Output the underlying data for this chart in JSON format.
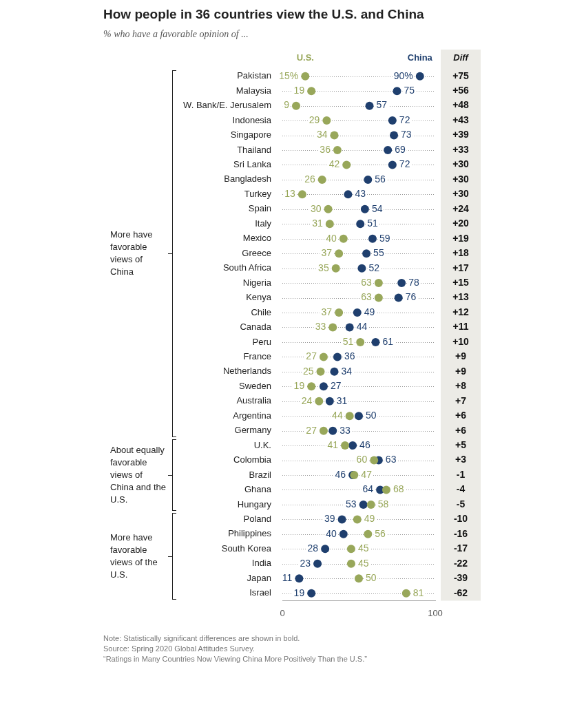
{
  "chart_data": {
    "type": "scatter",
    "orientation": "horizontal",
    "title": "How people in 36 countries view the U.S. and China",
    "subtitle": "% who have a favorable opinion of ...",
    "categories": [
      "Pakistan",
      "Malaysia",
      "W. Bank/E. Jerusalem",
      "Indonesia",
      "Singapore",
      "Thailand",
      "Sri Lanka",
      "Bangladesh",
      "Turkey",
      "Spain",
      "Italy",
      "Mexico",
      "Greece",
      "South Africa",
      "Nigeria",
      "Kenya",
      "Chile",
      "Canada",
      "Peru",
      "France",
      "Netherlands",
      "Sweden",
      "Australia",
      "Argentina",
      "Germany",
      "U.K.",
      "Colombia",
      "Brazil",
      "Ghana",
      "Hungary",
      "Poland",
      "Philippines",
      "South Korea",
      "India",
      "Japan",
      "Israel"
    ],
    "series": [
      {
        "name": "U.S.",
        "color": "#98a75a",
        "values": [
          15,
          19,
          9,
          29,
          34,
          36,
          42,
          26,
          13,
          30,
          31,
          40,
          37,
          35,
          63,
          63,
          37,
          33,
          51,
          27,
          25,
          19,
          24,
          44,
          27,
          41,
          60,
          47,
          68,
          58,
          49,
          56,
          45,
          45,
          50,
          81
        ],
        "value_labels": [
          "15%",
          "19",
          "9",
          "29",
          "34",
          "36",
          "42",
          "26",
          "13",
          "30",
          "31",
          "40",
          "37",
          "35",
          "63",
          "63",
          "37",
          "33",
          "51",
          "27",
          "25",
          "19",
          "24",
          "44",
          "27",
          "41",
          "60",
          "47",
          "68",
          "58",
          "49",
          "56",
          "45",
          "45",
          "50",
          "81"
        ]
      },
      {
        "name": "China",
        "color": "#1f3f6e",
        "values": [
          90,
          75,
          57,
          72,
          73,
          69,
          72,
          56,
          43,
          54,
          51,
          59,
          55,
          52,
          78,
          76,
          49,
          44,
          61,
          36,
          34,
          27,
          31,
          50,
          33,
          46,
          63,
          46,
          64,
          53,
          39,
          40,
          28,
          23,
          11,
          19
        ],
        "value_labels": [
          "90%",
          "75",
          "57",
          "72",
          "73",
          "69",
          "72",
          "56",
          "43",
          "54",
          "51",
          "59",
          "55",
          "52",
          "78",
          "76",
          "49",
          "44",
          "61",
          "36",
          "34",
          "27",
          "31",
          "50",
          "33",
          "46",
          "63",
          "46",
          "64",
          "53",
          "39",
          "40",
          "28",
          "23",
          "11",
          "19"
        ]
      }
    ],
    "xlim": [
      0,
      100
    ],
    "xticks": [
      0,
      100
    ],
    "grid": "y",
    "legend": "top",
    "marker": "circle",
    "annotations": [
      "Diff",
      "+75",
      "+56",
      "+48",
      "+43",
      "+39",
      "+33",
      "+30",
      "+30",
      "+30",
      "+24",
      "+20",
      "+19",
      "+18",
      "+17",
      "+15",
      "+13",
      "+12",
      "+11",
      "+10",
      "+9",
      "+9",
      "+8",
      "+7",
      "+6",
      "+6",
      "+5",
      "+3",
      "-1",
      "-4",
      "-5",
      "-10",
      "-16",
      "-17",
      "-22",
      "-39",
      "-62",
      "More have favorable views of China",
      "About equally favorable views of China and the U.S.",
      "More have favorable views of the U.S.",
      "Note: Statistically significant differences are shown in bold.",
      "Source: Spring 2020 Global Attitudes Survey.",
      "“Ratings in Many Countries Now Viewing China More Positively Than the U.S.”"
    ]
  }
}
